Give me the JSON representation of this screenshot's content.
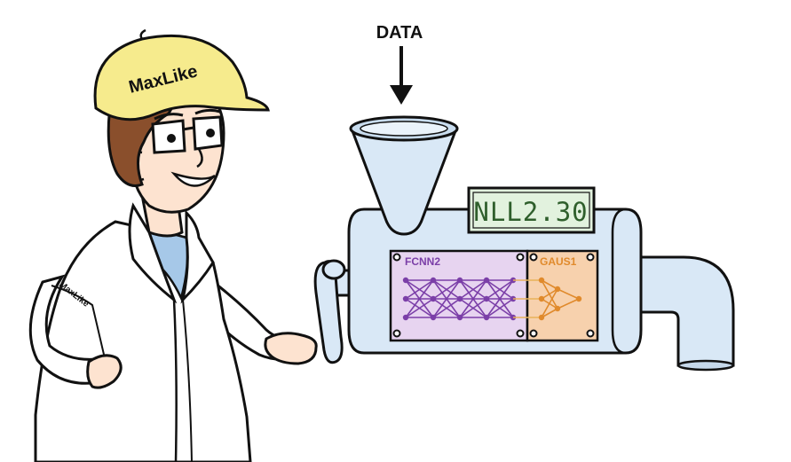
{
  "input_label": "DATA",
  "character": {
    "cap_text": "MaxLike",
    "sleeve_text": "MaxLike"
  },
  "machine": {
    "display_text": "NLL2.30",
    "panels": [
      {
        "label": "FCNN2",
        "color": "#7b3fa8"
      },
      {
        "label": "GAUS1",
        "color": "#e08a2c"
      }
    ]
  },
  "colors": {
    "machine_body": "#d9e8f6",
    "cap": "#f6eb8d",
    "display_bg": "#e2f2de",
    "nn_panel_bg": "#e7d4f0",
    "gauss_panel_bg": "#f7d1ad"
  }
}
